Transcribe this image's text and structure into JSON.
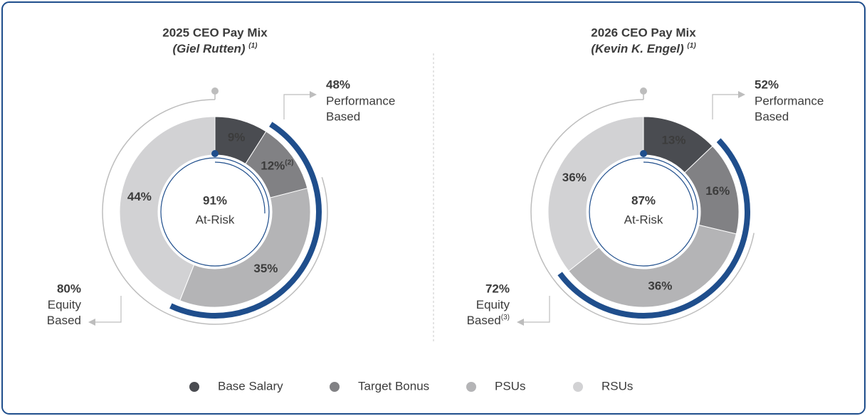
{
  "chart_data": [
    {
      "type": "pie",
      "title": "2025 CEO Pay Mix",
      "subtitle": "(Giel Rutten)",
      "subtitle_note": "(1)",
      "categories": [
        "Base Salary",
        "Target Bonus",
        "PSUs",
        "RSUs"
      ],
      "values": [
        9,
        12,
        35,
        44
      ],
      "value_labels": [
        "9%",
        "12%",
        "35%",
        "44%"
      ],
      "value_label_notes": [
        null,
        "(2)",
        null,
        null
      ],
      "colors": [
        "#4a4c51",
        "#818184",
        "#b4b4b6",
        "#d2d2d4"
      ],
      "center_value": 91,
      "center_value_label": "91%",
      "center_text": "At-Risk",
      "performance": {
        "value": 48,
        "label": "48%",
        "lines": [
          "Performance",
          "Based"
        ],
        "note": null
      },
      "equity": {
        "value": 80,
        "label": "80%",
        "lines": [
          "Equity",
          "Based"
        ],
        "note": null
      }
    },
    {
      "type": "pie",
      "title": "2026 CEO Pay Mix",
      "subtitle": "(Kevin K. Engel)",
      "subtitle_note": "(1)",
      "categories": [
        "Base Salary",
        "Target Bonus",
        "PSUs",
        "RSUs"
      ],
      "values": [
        13,
        16,
        36,
        36
      ],
      "value_labels": [
        "13%",
        "16%",
        "36%",
        "36%"
      ],
      "value_label_notes": [
        null,
        null,
        null,
        null
      ],
      "colors": [
        "#4a4c51",
        "#818184",
        "#b4b4b6",
        "#d2d2d4"
      ],
      "center_value": 87,
      "center_value_label": "87%",
      "center_text": "At-Risk",
      "performance": {
        "value": 52,
        "label": "52%",
        "lines": [
          "Performance",
          "Based"
        ],
        "note": null
      },
      "equity": {
        "value": 72,
        "label": "72%",
        "lines": [
          "Equity",
          "Based"
        ],
        "note": "(3)"
      }
    }
  ]
}
